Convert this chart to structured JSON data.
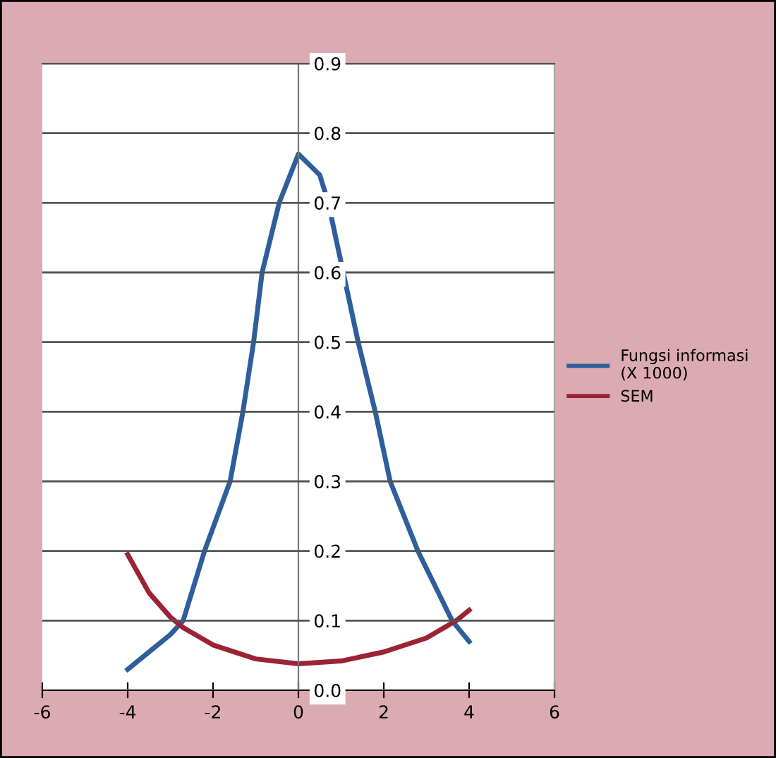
{
  "chart_data": {
    "type": "line",
    "xlim": [
      -6,
      6
    ],
    "xticks": [
      -6,
      -4,
      -2,
      0,
      2,
      4,
      6
    ],
    "ylim": [
      0,
      0.9
    ],
    "yticks": [
      {
        "value": 0,
        "label": "0.0"
      },
      0.1,
      0.2,
      0.3,
      0.4,
      0.5,
      0.6,
      0.7,
      0.8,
      0.9
    ],
    "grid": "y",
    "legend": "right",
    "marker": "none",
    "line_style": "solid",
    "series": [
      {
        "name": "Fungsi informasi\n(X 1000)",
        "color": "#2e5f9c",
        "x": [
          -4,
          -3.5,
          -3,
          -2.7,
          -2.2,
          -1.6,
          -1.3,
          -1.05,
          -0.85,
          -0.45,
          0,
          0.5,
          0.7,
          1.05,
          1.4,
          1.8,
          2.15,
          2.8,
          3.6,
          4
        ],
        "values": [
          0.03,
          0.055,
          0.08,
          0.1,
          0.2,
          0.3,
          0.4,
          0.5,
          0.6,
          0.7,
          0.77,
          0.74,
          0.7,
          0.6,
          0.5,
          0.4,
          0.3,
          0.2,
          0.1,
          0.07
        ]
      },
      {
        "name": "SEM",
        "color": "#9b2335",
        "x": [
          -4,
          -3.5,
          -3,
          -2.7,
          -2,
          -1,
          0,
          1,
          2,
          3,
          3.7,
          4
        ],
        "values": [
          0.195,
          0.14,
          0.105,
          0.09,
          0.065,
          0.045,
          0.038,
          0.042,
          0.055,
          0.075,
          0.1,
          0.115
        ]
      }
    ]
  }
}
